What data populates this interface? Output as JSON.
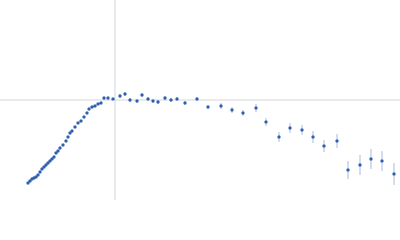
{
  "chart_data": {
    "type": "scatter",
    "x": [
      28,
      30,
      32,
      34,
      36,
      38,
      40,
      42,
      44,
      46,
      48,
      50,
      52,
      54,
      56,
      58,
      60,
      63,
      66,
      68,
      70,
      72,
      75,
      78,
      81,
      84,
      87,
      89,
      92,
      95,
      98,
      101,
      104,
      108,
      113,
      120,
      125,
      130,
      137,
      142,
      148,
      153,
      158,
      165,
      171,
      177,
      185,
      197,
      208,
      221,
      232,
      243,
      256,
      266,
      279,
      290,
      302,
      313,
      324,
      337,
      348,
      360,
      371,
      382,
      394
    ],
    "series": [
      {
        "color": "#2f5fb3",
        "error_color": "#a9bbdd",
        "values": [
          17,
          19,
          21,
          22,
          23,
          25,
          28,
          31,
          33,
          35,
          37,
          39,
          41,
          43,
          47,
          49,
          52,
          55,
          59,
          63,
          67,
          69,
          73,
          77,
          79,
          83,
          87,
          91,
          93,
          94,
          96,
          97,
          102,
          102,
          101,
          104,
          106,
          100,
          99,
          105,
          101,
          99,
          98,
          102,
          100,
          101,
          97,
          101,
          93,
          94,
          90,
          87,
          92,
          78,
          63,
          72,
          70,
          63,
          54,
          59,
          30,
          35,
          41,
          39,
          26
        ],
        "errors": [
          1,
          1,
          1,
          1,
          1,
          1,
          1,
          1,
          1,
          1,
          1,
          1,
          1,
          1,
          1,
          1,
          1,
          1,
          1,
          1,
          1,
          1,
          1,
          1,
          1,
          1,
          1,
          1,
          1,
          1,
          1,
          1,
          1,
          1,
          1,
          2,
          2,
          2,
          2,
          2,
          2,
          2,
          2,
          2,
          2,
          2,
          2,
          2,
          2,
          3,
          3,
          3,
          4,
          4,
          5,
          5,
          5,
          6,
          6,
          7,
          9,
          10,
          10,
          10,
          11
        ]
      }
    ],
    "xlim": [
      0,
      400
    ],
    "ylim": [
      0,
      200
    ],
    "hline": 100,
    "vline": 115,
    "ref_color": "#d0d4dc"
  }
}
